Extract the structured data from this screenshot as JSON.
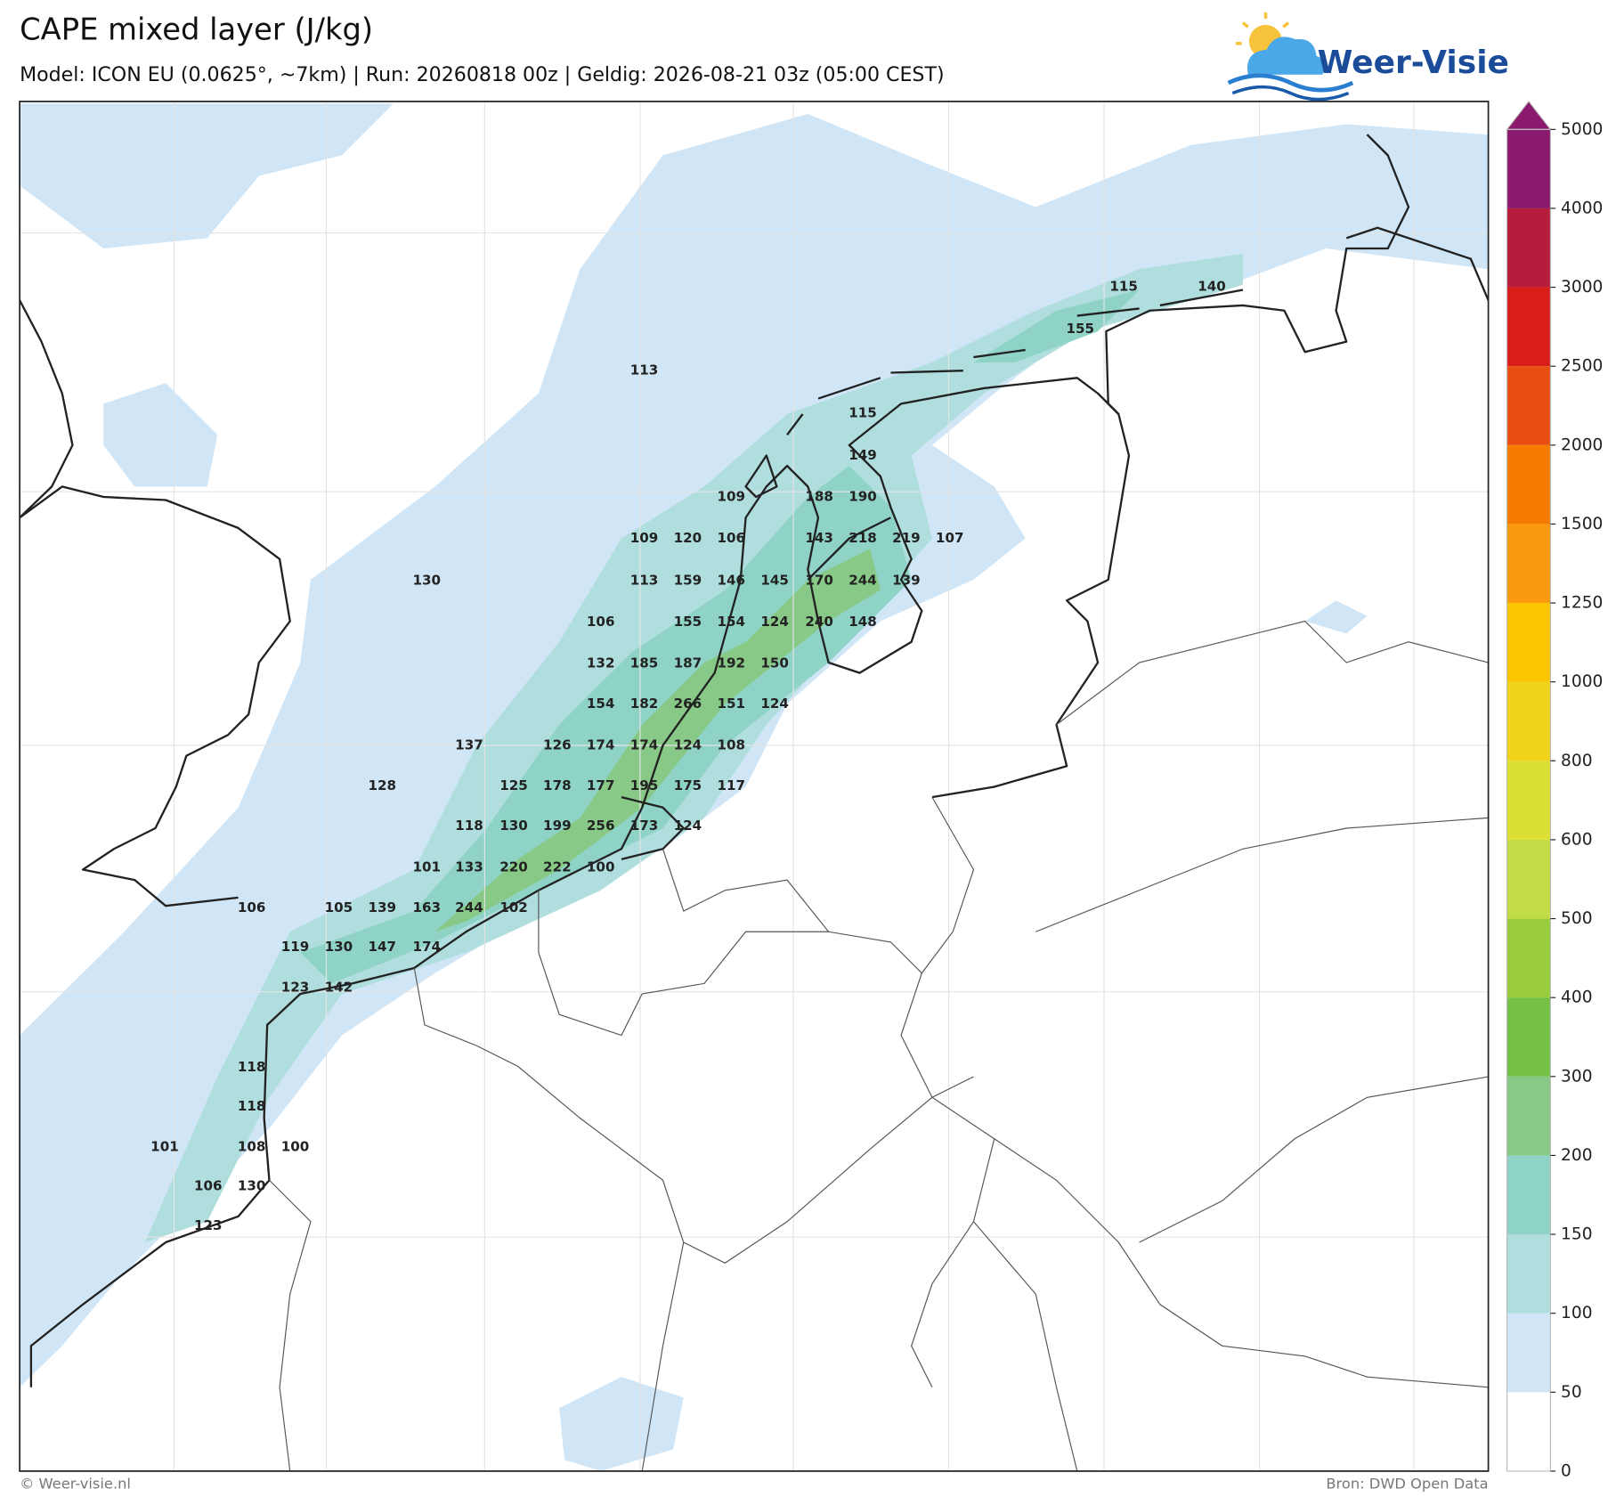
{
  "title": "CAPE mixed layer (J/kg)",
  "subtitle": "Model: ICON EU (0.0625°, ~7km)  |  Run: 20260818 00z  |  Geldig: 2026-08-21 03z (05:00 CEST)",
  "logo": "Weer-Visie",
  "footer_left": "© Weer-visie.nl",
  "footer_right": "Bron: DWD Open Data",
  "colorbar": {
    "ticks": [
      0,
      50,
      100,
      150,
      200,
      300,
      400,
      500,
      600,
      800,
      1000,
      1250,
      1500,
      2000,
      2500,
      3000,
      4000,
      5000
    ],
    "colors": [
      "#ffffff",
      "#d0e6f6",
      "#b0dede",
      "#8fd3c6",
      "#88c987",
      "#74c146",
      "#99cc3d",
      "#c2dc47",
      "#dde034",
      "#f0d21a",
      "#fbc500",
      "#fa9b0f",
      "#f57c00",
      "#e84e10",
      "#d91e1a",
      "#b71c3c",
      "#8b1a6e"
    ]
  },
  "labels": [
    115,
    140,
    155,
    113,
    115,
    149,
    109,
    188,
    190,
    109,
    120,
    106,
    143,
    218,
    219,
    107,
    130,
    113,
    159,
    146,
    145,
    170,
    244,
    139,
    106,
    155,
    154,
    124,
    240,
    148,
    132,
    185,
    187,
    192,
    150,
    154,
    182,
    266,
    151,
    124,
    137,
    126,
    174,
    174,
    124,
    108,
    128,
    125,
    178,
    177,
    195,
    175,
    117,
    118,
    130,
    199,
    256,
    173,
    124,
    101,
    133,
    220,
    222,
    100,
    106,
    105,
    139,
    163,
    244,
    102,
    119,
    130,
    147,
    174,
    123,
    142,
    118,
    118,
    101,
    108,
    100,
    106,
    130,
    123
  ]
}
